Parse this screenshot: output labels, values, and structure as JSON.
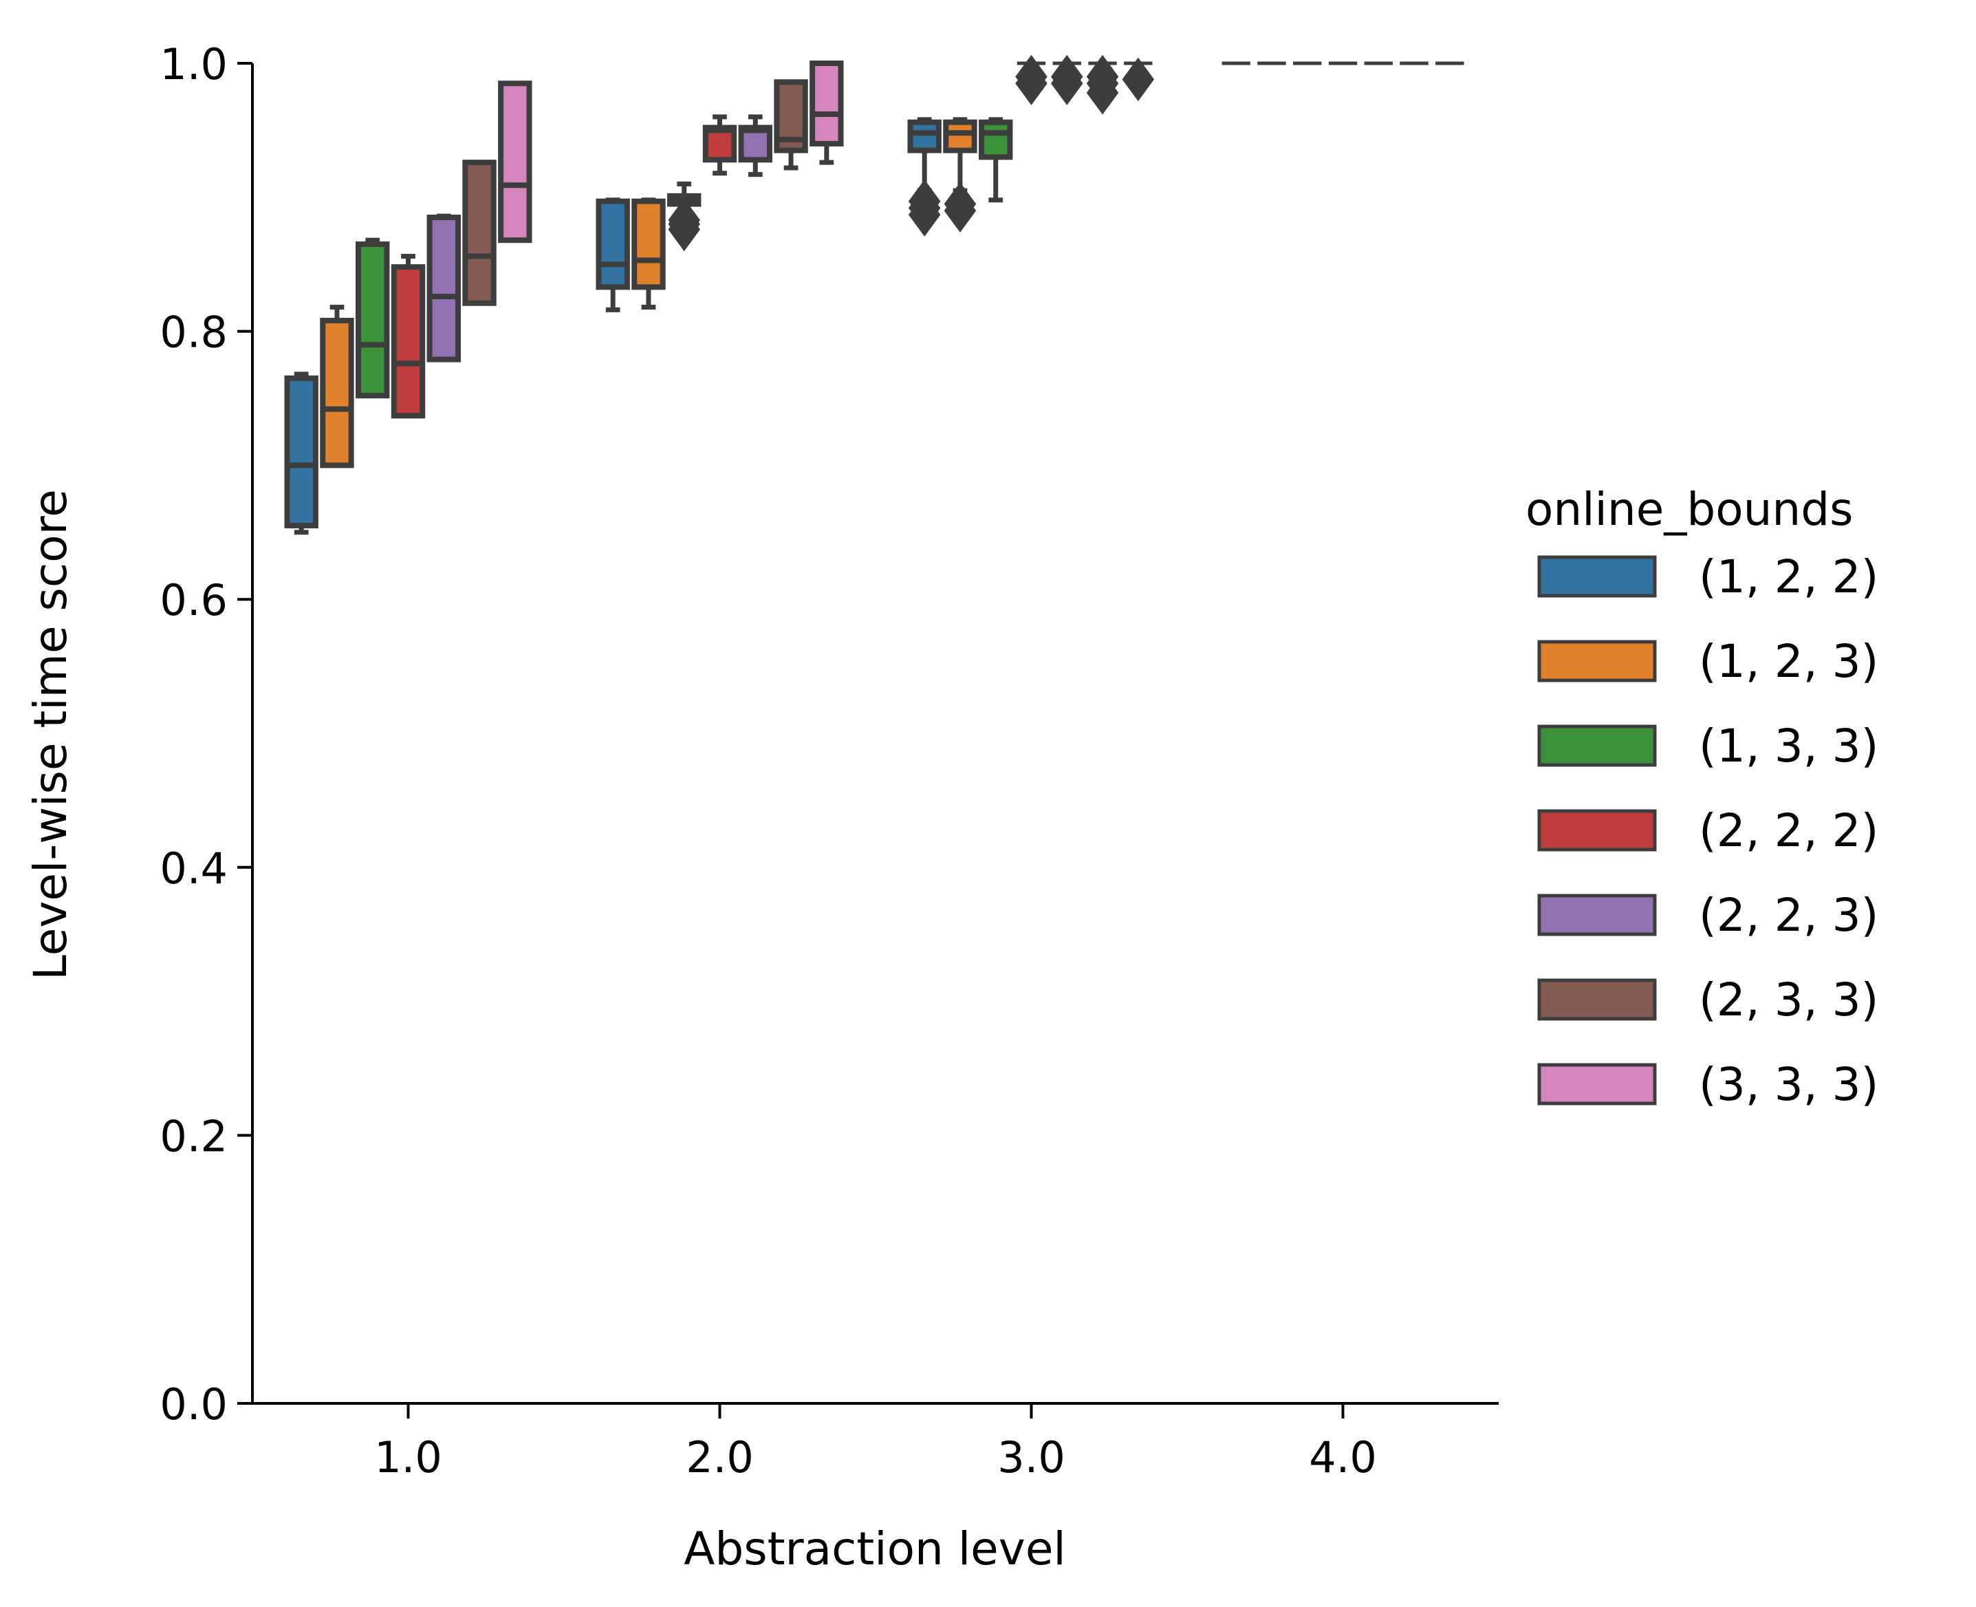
{
  "chart_data": {
    "type": "box",
    "xlabel": "Abstraction level",
    "ylabel": "Level-wise time score",
    "ylim": [
      0.0,
      1.0
    ],
    "xlim": [
      0.5,
      4.5
    ],
    "yticks": [
      "0.0",
      "0.2",
      "0.4",
      "0.6",
      "0.8",
      "1.0"
    ],
    "categories": [
      "1.0",
      "2.0",
      "3.0",
      "4.0"
    ],
    "legend": {
      "title": "online_bounds",
      "position": "right",
      "entries": [
        "(1, 2, 2)",
        "(1, 2, 3)",
        "(1, 3, 3)",
        "(2, 2, 2)",
        "(2, 2, 3)",
        "(2, 3, 3)",
        "(3, 3, 3)"
      ]
    },
    "colors": [
      "#3274a1",
      "#e1812c",
      "#3a923a",
      "#c03d3e",
      "#9372b2",
      "#845b53",
      "#d684bd"
    ],
    "edge_color": "#3d3d3d",
    "grid": false,
    "groups": [
      {
        "level": 1.0,
        "boxes": [
          {
            "series": "(1, 2, 2)",
            "whislo": 0.65,
            "q1": 0.655,
            "med": 0.7,
            "q3": 0.765,
            "whishi": 0.768,
            "fliers": []
          },
          {
            "series": "(1, 2, 3)",
            "whislo": 0.7,
            "q1": 0.7,
            "med": 0.742,
            "q3": 0.808,
            "whishi": 0.818,
            "fliers": []
          },
          {
            "series": "(1, 3, 3)",
            "whislo": 0.752,
            "q1": 0.752,
            "med": 0.79,
            "q3": 0.865,
            "whishi": 0.868,
            "fliers": []
          },
          {
            "series": "(2, 2, 2)",
            "whislo": 0.737,
            "q1": 0.737,
            "med": 0.776,
            "q3": 0.848,
            "whishi": 0.856,
            "fliers": []
          },
          {
            "series": "(2, 2, 3)",
            "whislo": 0.779,
            "q1": 0.779,
            "med": 0.826,
            "q3": 0.885,
            "whishi": 0.886,
            "fliers": []
          },
          {
            "series": "(2, 3, 3)",
            "whislo": 0.821,
            "q1": 0.821,
            "med": 0.856,
            "q3": 0.926,
            "whishi": 0.926,
            "fliers": []
          },
          {
            "series": "(3, 3, 3)",
            "whislo": 0.868,
            "q1": 0.868,
            "med": 0.909,
            "q3": 0.985,
            "whishi": 0.985,
            "fliers": []
          }
        ]
      },
      {
        "level": 2.0,
        "boxes": [
          {
            "series": "(1, 2, 2)",
            "whislo": 0.816,
            "q1": 0.833,
            "med": 0.85,
            "q3": 0.897,
            "whishi": 0.898,
            "fliers": []
          },
          {
            "series": "(1, 2, 3)",
            "whislo": 0.818,
            "q1": 0.833,
            "med": 0.853,
            "q3": 0.897,
            "whishi": 0.898,
            "fliers": []
          },
          {
            "series": "(1, 3, 3)",
            "whislo": 0.89,
            "q1": 0.895,
            "med": 0.898,
            "q3": 0.901,
            "whishi": 0.91,
            "fliers": [
              0.876,
              0.88,
              0.883
            ]
          },
          {
            "series": "(2, 2, 2)",
            "whislo": 0.918,
            "q1": 0.928,
            "med": 0.95,
            "q3": 0.952,
            "whishi": 0.96,
            "fliers": []
          },
          {
            "series": "(2, 2, 3)",
            "whislo": 0.917,
            "q1": 0.928,
            "med": 0.95,
            "q3": 0.952,
            "whishi": 0.96,
            "fliers": []
          },
          {
            "series": "(2, 3, 3)",
            "whislo": 0.922,
            "q1": 0.935,
            "med": 0.943,
            "q3": 0.986,
            "whishi": 0.986,
            "fliers": []
          },
          {
            "series": "(3, 3, 3)",
            "whislo": 0.926,
            "q1": 0.94,
            "med": 0.962,
            "q3": 1.0,
            "whishi": 1.0,
            "fliers": []
          }
        ]
      },
      {
        "level": 3.0,
        "boxes": [
          {
            "series": "(1, 2, 2)",
            "whislo": 0.905,
            "q1": 0.935,
            "med": 0.948,
            "q3": 0.956,
            "whishi": 0.958,
            "fliers": [
              0.887,
              0.892,
              0.897
            ]
          },
          {
            "series": "(1, 2, 3)",
            "whislo": 0.905,
            "q1": 0.935,
            "med": 0.948,
            "q3": 0.956,
            "whishi": 0.958,
            "fliers": [
              0.89,
              0.895
            ]
          },
          {
            "series": "(1, 3, 3)",
            "whislo": 0.898,
            "q1": 0.93,
            "med": 0.948,
            "q3": 0.956,
            "whishi": 0.958,
            "fliers": []
          },
          {
            "series": "(2, 2, 2)",
            "whislo": 1.0,
            "q1": 1.0,
            "med": 1.0,
            "q3": 1.0,
            "whishi": 1.0,
            "fliers": [
              0.985,
              0.99
            ]
          },
          {
            "series": "(2, 2, 3)",
            "whislo": 1.0,
            "q1": 1.0,
            "med": 1.0,
            "q3": 1.0,
            "whishi": 1.0,
            "fliers": [
              0.985,
              0.99
            ]
          },
          {
            "series": "(2, 3, 3)",
            "whislo": 1.0,
            "q1": 1.0,
            "med": 1.0,
            "q3": 1.0,
            "whishi": 1.0,
            "fliers": [
              0.978,
              0.985,
              0.99
            ]
          },
          {
            "series": "(3, 3, 3)",
            "whislo": 1.0,
            "q1": 1.0,
            "med": 1.0,
            "q3": 1.0,
            "whishi": 1.0,
            "fliers": [
              0.988
            ]
          }
        ]
      },
      {
        "level": 4.0,
        "boxes": [
          {
            "series": "(1, 2, 2)",
            "whislo": 1.0,
            "q1": 1.0,
            "med": 1.0,
            "q3": 1.0,
            "whishi": 1.0,
            "fliers": []
          },
          {
            "series": "(1, 2, 3)",
            "whislo": 1.0,
            "q1": 1.0,
            "med": 1.0,
            "q3": 1.0,
            "whishi": 1.0,
            "fliers": []
          },
          {
            "series": "(1, 3, 3)",
            "whislo": 1.0,
            "q1": 1.0,
            "med": 1.0,
            "q3": 1.0,
            "whishi": 1.0,
            "fliers": []
          },
          {
            "series": "(2, 2, 2)",
            "whislo": 1.0,
            "q1": 1.0,
            "med": 1.0,
            "q3": 1.0,
            "whishi": 1.0,
            "fliers": []
          },
          {
            "series": "(2, 2, 3)",
            "whislo": 1.0,
            "q1": 1.0,
            "med": 1.0,
            "q3": 1.0,
            "whishi": 1.0,
            "fliers": []
          },
          {
            "series": "(2, 3, 3)",
            "whislo": 1.0,
            "q1": 1.0,
            "med": 1.0,
            "q3": 1.0,
            "whishi": 1.0,
            "fliers": []
          },
          {
            "series": "(3, 3, 3)",
            "whislo": 1.0,
            "q1": 1.0,
            "med": 1.0,
            "q3": 1.0,
            "whishi": 1.0,
            "fliers": []
          }
        ]
      }
    ]
  }
}
